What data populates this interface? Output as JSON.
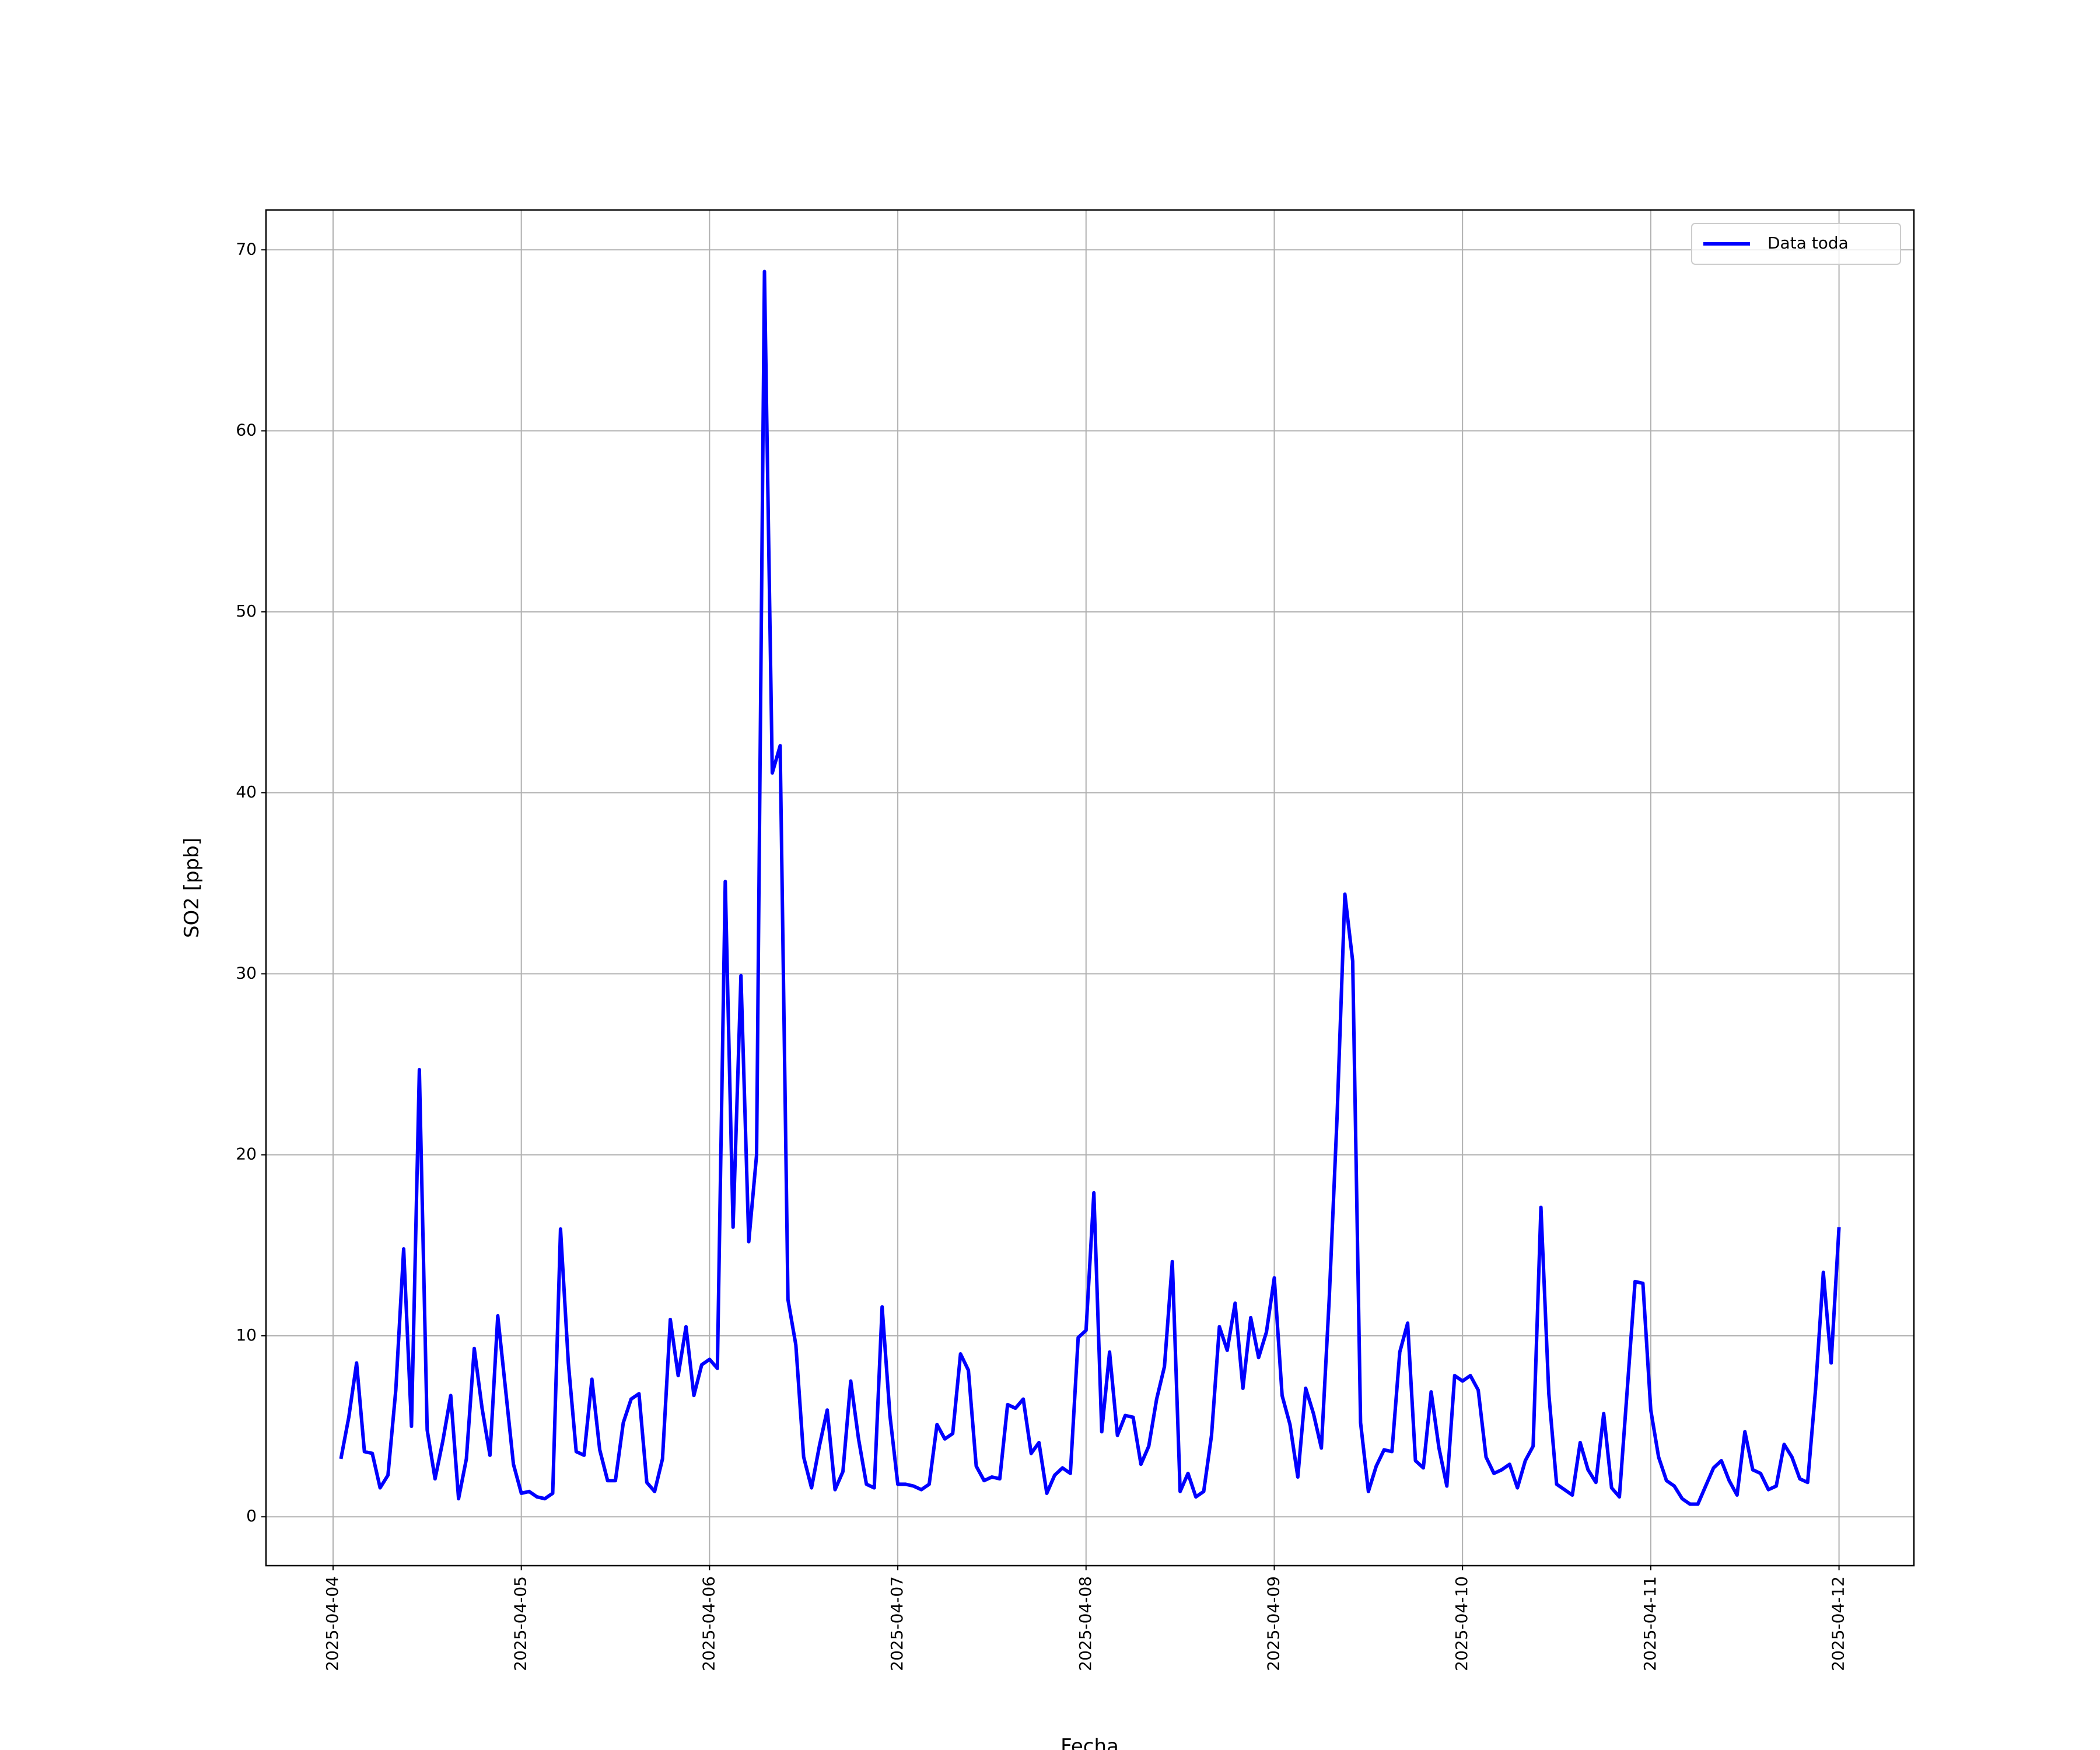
{
  "chart_data": {
    "type": "line",
    "xlabel": "Fecha",
    "ylabel": "SO2 [ppb]",
    "x": [
      "2025-04-04 01:00",
      "2025-04-04 02:00",
      "2025-04-04 03:00",
      "2025-04-04 04:00",
      "2025-04-04 05:00",
      "2025-04-04 06:00",
      "2025-04-04 07:00",
      "2025-04-04 08:00",
      "2025-04-04 09:00",
      "2025-04-04 10:00",
      "2025-04-04 11:00",
      "2025-04-04 12:00",
      "2025-04-04 13:00",
      "2025-04-04 14:00",
      "2025-04-04 15:00",
      "2025-04-04 16:00",
      "2025-04-04 17:00",
      "2025-04-04 18:00",
      "2025-04-04 19:00",
      "2025-04-04 20:00",
      "2025-04-04 21:00",
      "2025-04-04 22:00",
      "2025-04-04 23:00",
      "2025-04-05 00:00",
      "2025-04-05 01:00",
      "2025-04-05 02:00",
      "2025-04-05 03:00",
      "2025-04-05 04:00",
      "2025-04-05 05:00",
      "2025-04-05 06:00",
      "2025-04-05 07:00",
      "2025-04-05 08:00",
      "2025-04-05 09:00",
      "2025-04-05 10:00",
      "2025-04-05 11:00",
      "2025-04-05 12:00",
      "2025-04-05 13:00",
      "2025-04-05 14:00",
      "2025-04-05 15:00",
      "2025-04-05 16:00",
      "2025-04-05 17:00",
      "2025-04-05 18:00",
      "2025-04-05 19:00",
      "2025-04-05 20:00",
      "2025-04-05 21:00",
      "2025-04-05 22:00",
      "2025-04-05 23:00",
      "2025-04-06 00:00",
      "2025-04-06 01:00",
      "2025-04-06 02:00",
      "2025-04-06 03:00",
      "2025-04-06 04:00",
      "2025-04-06 05:00",
      "2025-04-06 06:00",
      "2025-04-06 07:00",
      "2025-04-06 08:00",
      "2025-04-06 09:00",
      "2025-04-06 10:00",
      "2025-04-06 11:00",
      "2025-04-06 12:00",
      "2025-04-06 13:00",
      "2025-04-06 14:00",
      "2025-04-06 15:00",
      "2025-04-06 16:00",
      "2025-04-06 17:00",
      "2025-04-06 18:00",
      "2025-04-06 19:00",
      "2025-04-06 20:00",
      "2025-04-06 21:00",
      "2025-04-06 22:00",
      "2025-04-06 23:00",
      "2025-04-07 00:00",
      "2025-04-07 01:00",
      "2025-04-07 02:00",
      "2025-04-07 03:00",
      "2025-04-07 04:00",
      "2025-04-07 05:00",
      "2025-04-07 06:00",
      "2025-04-07 07:00",
      "2025-04-07 08:00",
      "2025-04-07 09:00",
      "2025-04-07 10:00",
      "2025-04-07 11:00",
      "2025-04-07 12:00",
      "2025-04-07 13:00",
      "2025-04-07 14:00",
      "2025-04-07 15:00",
      "2025-04-07 16:00",
      "2025-04-07 17:00",
      "2025-04-07 18:00",
      "2025-04-07 19:00",
      "2025-04-07 20:00",
      "2025-04-07 21:00",
      "2025-04-07 22:00",
      "2025-04-07 23:00",
      "2025-04-08 00:00",
      "2025-04-08 01:00",
      "2025-04-08 02:00",
      "2025-04-08 03:00",
      "2025-04-08 04:00",
      "2025-04-08 05:00",
      "2025-04-08 06:00",
      "2025-04-08 07:00",
      "2025-04-08 08:00",
      "2025-04-08 09:00",
      "2025-04-08 10:00",
      "2025-04-08 11:00",
      "2025-04-08 12:00",
      "2025-04-08 13:00",
      "2025-04-08 14:00",
      "2025-04-08 15:00",
      "2025-04-08 16:00",
      "2025-04-08 17:00",
      "2025-04-08 18:00",
      "2025-04-08 19:00",
      "2025-04-08 20:00",
      "2025-04-08 21:00",
      "2025-04-08 22:00",
      "2025-04-08 23:00",
      "2025-04-09 00:00",
      "2025-04-09 01:00",
      "2025-04-09 02:00",
      "2025-04-09 03:00",
      "2025-04-09 04:00",
      "2025-04-09 05:00",
      "2025-04-09 06:00",
      "2025-04-09 07:00",
      "2025-04-09 08:00",
      "2025-04-09 09:00",
      "2025-04-09 10:00",
      "2025-04-09 11:00",
      "2025-04-09 12:00",
      "2025-04-09 13:00",
      "2025-04-09 14:00",
      "2025-04-09 15:00",
      "2025-04-09 16:00",
      "2025-04-09 17:00",
      "2025-04-09 18:00",
      "2025-04-09 19:00",
      "2025-04-09 20:00",
      "2025-04-09 21:00",
      "2025-04-09 22:00",
      "2025-04-09 23:00",
      "2025-04-10 00:00",
      "2025-04-10 01:00",
      "2025-04-10 02:00",
      "2025-04-10 03:00",
      "2025-04-10 04:00",
      "2025-04-10 05:00",
      "2025-04-10 06:00",
      "2025-04-10 07:00",
      "2025-04-10 08:00",
      "2025-04-10 09:00",
      "2025-04-10 10:00",
      "2025-04-10 11:00",
      "2025-04-10 12:00",
      "2025-04-10 13:00",
      "2025-04-10 14:00",
      "2025-04-10 15:00",
      "2025-04-10 16:00",
      "2025-04-10 17:00",
      "2025-04-10 18:00",
      "2025-04-10 19:00",
      "2025-04-10 20:00",
      "2025-04-10 21:00",
      "2025-04-10 22:00",
      "2025-04-10 23:00",
      "2025-04-11 00:00",
      "2025-04-11 01:00",
      "2025-04-11 02:00",
      "2025-04-11 03:00",
      "2025-04-11 04:00",
      "2025-04-11 05:00",
      "2025-04-11 06:00",
      "2025-04-11 07:00",
      "2025-04-11 08:00",
      "2025-04-11 09:00",
      "2025-04-11 10:00",
      "2025-04-11 11:00",
      "2025-04-11 12:00",
      "2025-04-11 13:00",
      "2025-04-11 14:00",
      "2025-04-11 15:00",
      "2025-04-11 16:00",
      "2025-04-11 17:00",
      "2025-04-11 18:00",
      "2025-04-11 19:00",
      "2025-04-11 20:00",
      "2025-04-11 21:00",
      "2025-04-11 22:00",
      "2025-04-11 23:00",
      "2025-04-12 00:00"
    ],
    "series": [
      {
        "name": "Data toda",
        "color": "#0000ff",
        "values": [
          3.2,
          5.5,
          8.5,
          3.6,
          3.5,
          1.6,
          2.3,
          7.0,
          14.8,
          5.0,
          24.7,
          4.8,
          2.1,
          4.2,
          6.7,
          1.0,
          3.2,
          9.3,
          6.0,
          3.4,
          11.1,
          7.0,
          2.9,
          1.3,
          1.4,
          1.1,
          1.0,
          1.3,
          15.9,
          8.5,
          3.6,
          3.4,
          7.6,
          3.7,
          2.0,
          2.0,
          5.2,
          6.5,
          6.8,
          1.9,
          1.4,
          3.2,
          10.9,
          7.8,
          10.5,
          6.7,
          8.4,
          8.7,
          8.2,
          35.1,
          16.0,
          29.9,
          15.2,
          20.0,
          68.8,
          41.1,
          42.6,
          12.0,
          9.5,
          3.3,
          1.6,
          3.9,
          5.9,
          1.5,
          2.5,
          7.5,
          4.3,
          1.8,
          1.6,
          11.6,
          5.6,
          1.8,
          1.8,
          1.7,
          1.5,
          1.8,
          5.1,
          4.3,
          4.6,
          9.0,
          8.1,
          2.8,
          2.0,
          2.2,
          2.1,
          6.2,
          6.0,
          6.5,
          3.5,
          4.1,
          1.3,
          2.3,
          2.7,
          2.4,
          9.9,
          10.3,
          17.9,
          4.7,
          9.1,
          4.5,
          5.6,
          5.5,
          2.9,
          3.9,
          6.5,
          8.3,
          14.1,
          1.4,
          2.4,
          1.1,
          1.4,
          4.5,
          10.5,
          9.2,
          11.8,
          7.1,
          11.0,
          8.8,
          10.2,
          13.2,
          6.7,
          5.1,
          2.2,
          7.1,
          5.7,
          3.8,
          12.0,
          22.0,
          34.4,
          30.7,
          5.2,
          1.4,
          2.8,
          3.7,
          3.6,
          9.1,
          10.7,
          3.1,
          2.7,
          6.9,
          3.8,
          1.7,
          7.8,
          7.5,
          7.8,
          7.0,
          3.3,
          2.4,
          2.6,
          2.9,
          1.6,
          3.1,
          3.9,
          17.1,
          6.8,
          1.8,
          1.5,
          1.2,
          4.1,
          2.6,
          1.9,
          5.7,
          1.6,
          1.1,
          7.0,
          13.0,
          12.9,
          5.9,
          3.3,
          2.0,
          1.7,
          1.0,
          0.7,
          0.7,
          1.7,
          2.7,
          3.1,
          2.0,
          1.2,
          4.7,
          2.6,
          2.4,
          1.5,
          1.7,
          4.0,
          3.3,
          2.1,
          1.9,
          7.0,
          13.5,
          8.5,
          16.0
        ]
      }
    ],
    "xlim": [
      "2025-04-03 15:27",
      "2025-04-12 09:33"
    ],
    "xticks": [
      "2025-04-04",
      "2025-04-05",
      "2025-04-06",
      "2025-04-07",
      "2025-04-08",
      "2025-04-09",
      "2025-04-10",
      "2025-04-11",
      "2025-04-12"
    ],
    "ylim": [
      -2.7,
      72.2
    ],
    "yticks": [
      0,
      10,
      20,
      30,
      40,
      50,
      60,
      70
    ],
    "grid": true,
    "legend": "upper right"
  }
}
